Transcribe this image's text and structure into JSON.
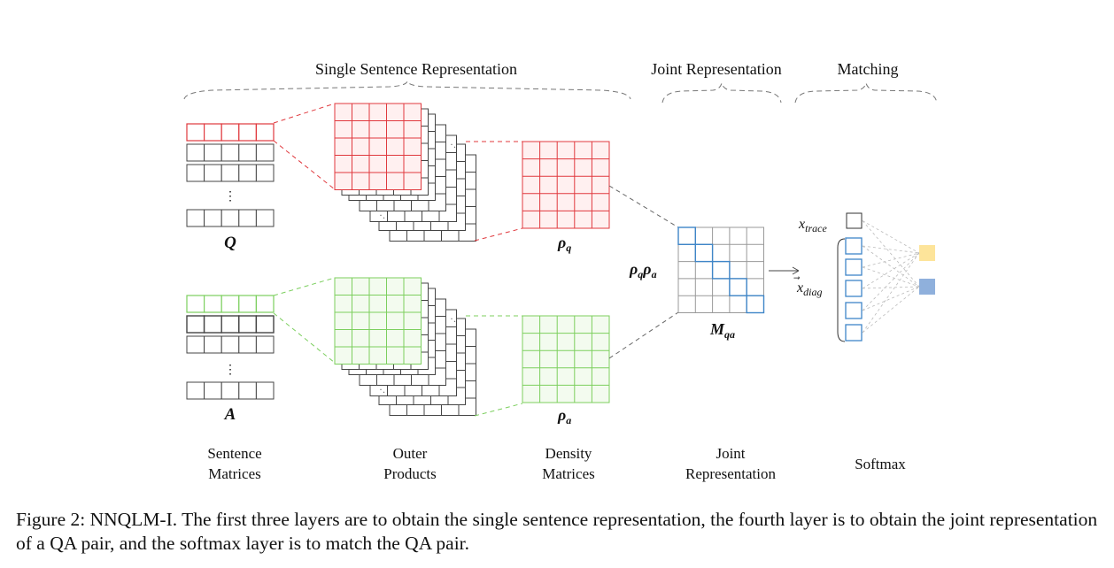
{
  "diagram": {
    "section_headers": {
      "single": "Single Sentence Representation",
      "joint": "Joint Representation",
      "matching": "Matching"
    },
    "math_labels": {
      "q": "Q",
      "a": "A",
      "rho_q": "ρ",
      "rho_q_sub": "q",
      "rho_a": "ρ",
      "rho_a_sub": "a",
      "rho_qa_1": "ρ",
      "rho_qa_1_sub": "q",
      "rho_qa_2": "ρ",
      "rho_qa_2_sub": "a",
      "m": "M",
      "m_sub": "qa",
      "x_trace": "x",
      "x_trace_sub": "trace",
      "x_diag": "x",
      "x_diag_arrow": "⃗",
      "x_diag_sub": "diag",
      "ellipsis": "⋮"
    },
    "column_labels": {
      "sentence": [
        "Sentence",
        "Matrices"
      ],
      "outer": [
        "Outer",
        "Products"
      ],
      "density": [
        "Density",
        "Matrices"
      ],
      "joint": [
        "Joint",
        "Representation"
      ],
      "softmax": "Softmax"
    },
    "colors": {
      "red": "#e0393e",
      "red_fill": "#fff0f0",
      "green": "#7ccf5e",
      "green_fill": "#f3fbef",
      "blue": "#3f86c8",
      "gray": "#444444",
      "light_gray": "#bbbbbb",
      "output_yellow": "#fde49a",
      "output_blue": "#8fb0dc"
    }
  },
  "caption": "Figure 2: NNQLM-I.  The first three layers are to obtain the single sentence representation, the fourth layer is to obtain the joint representation of a QA pair, and the softmax layer is to match the QA pair."
}
